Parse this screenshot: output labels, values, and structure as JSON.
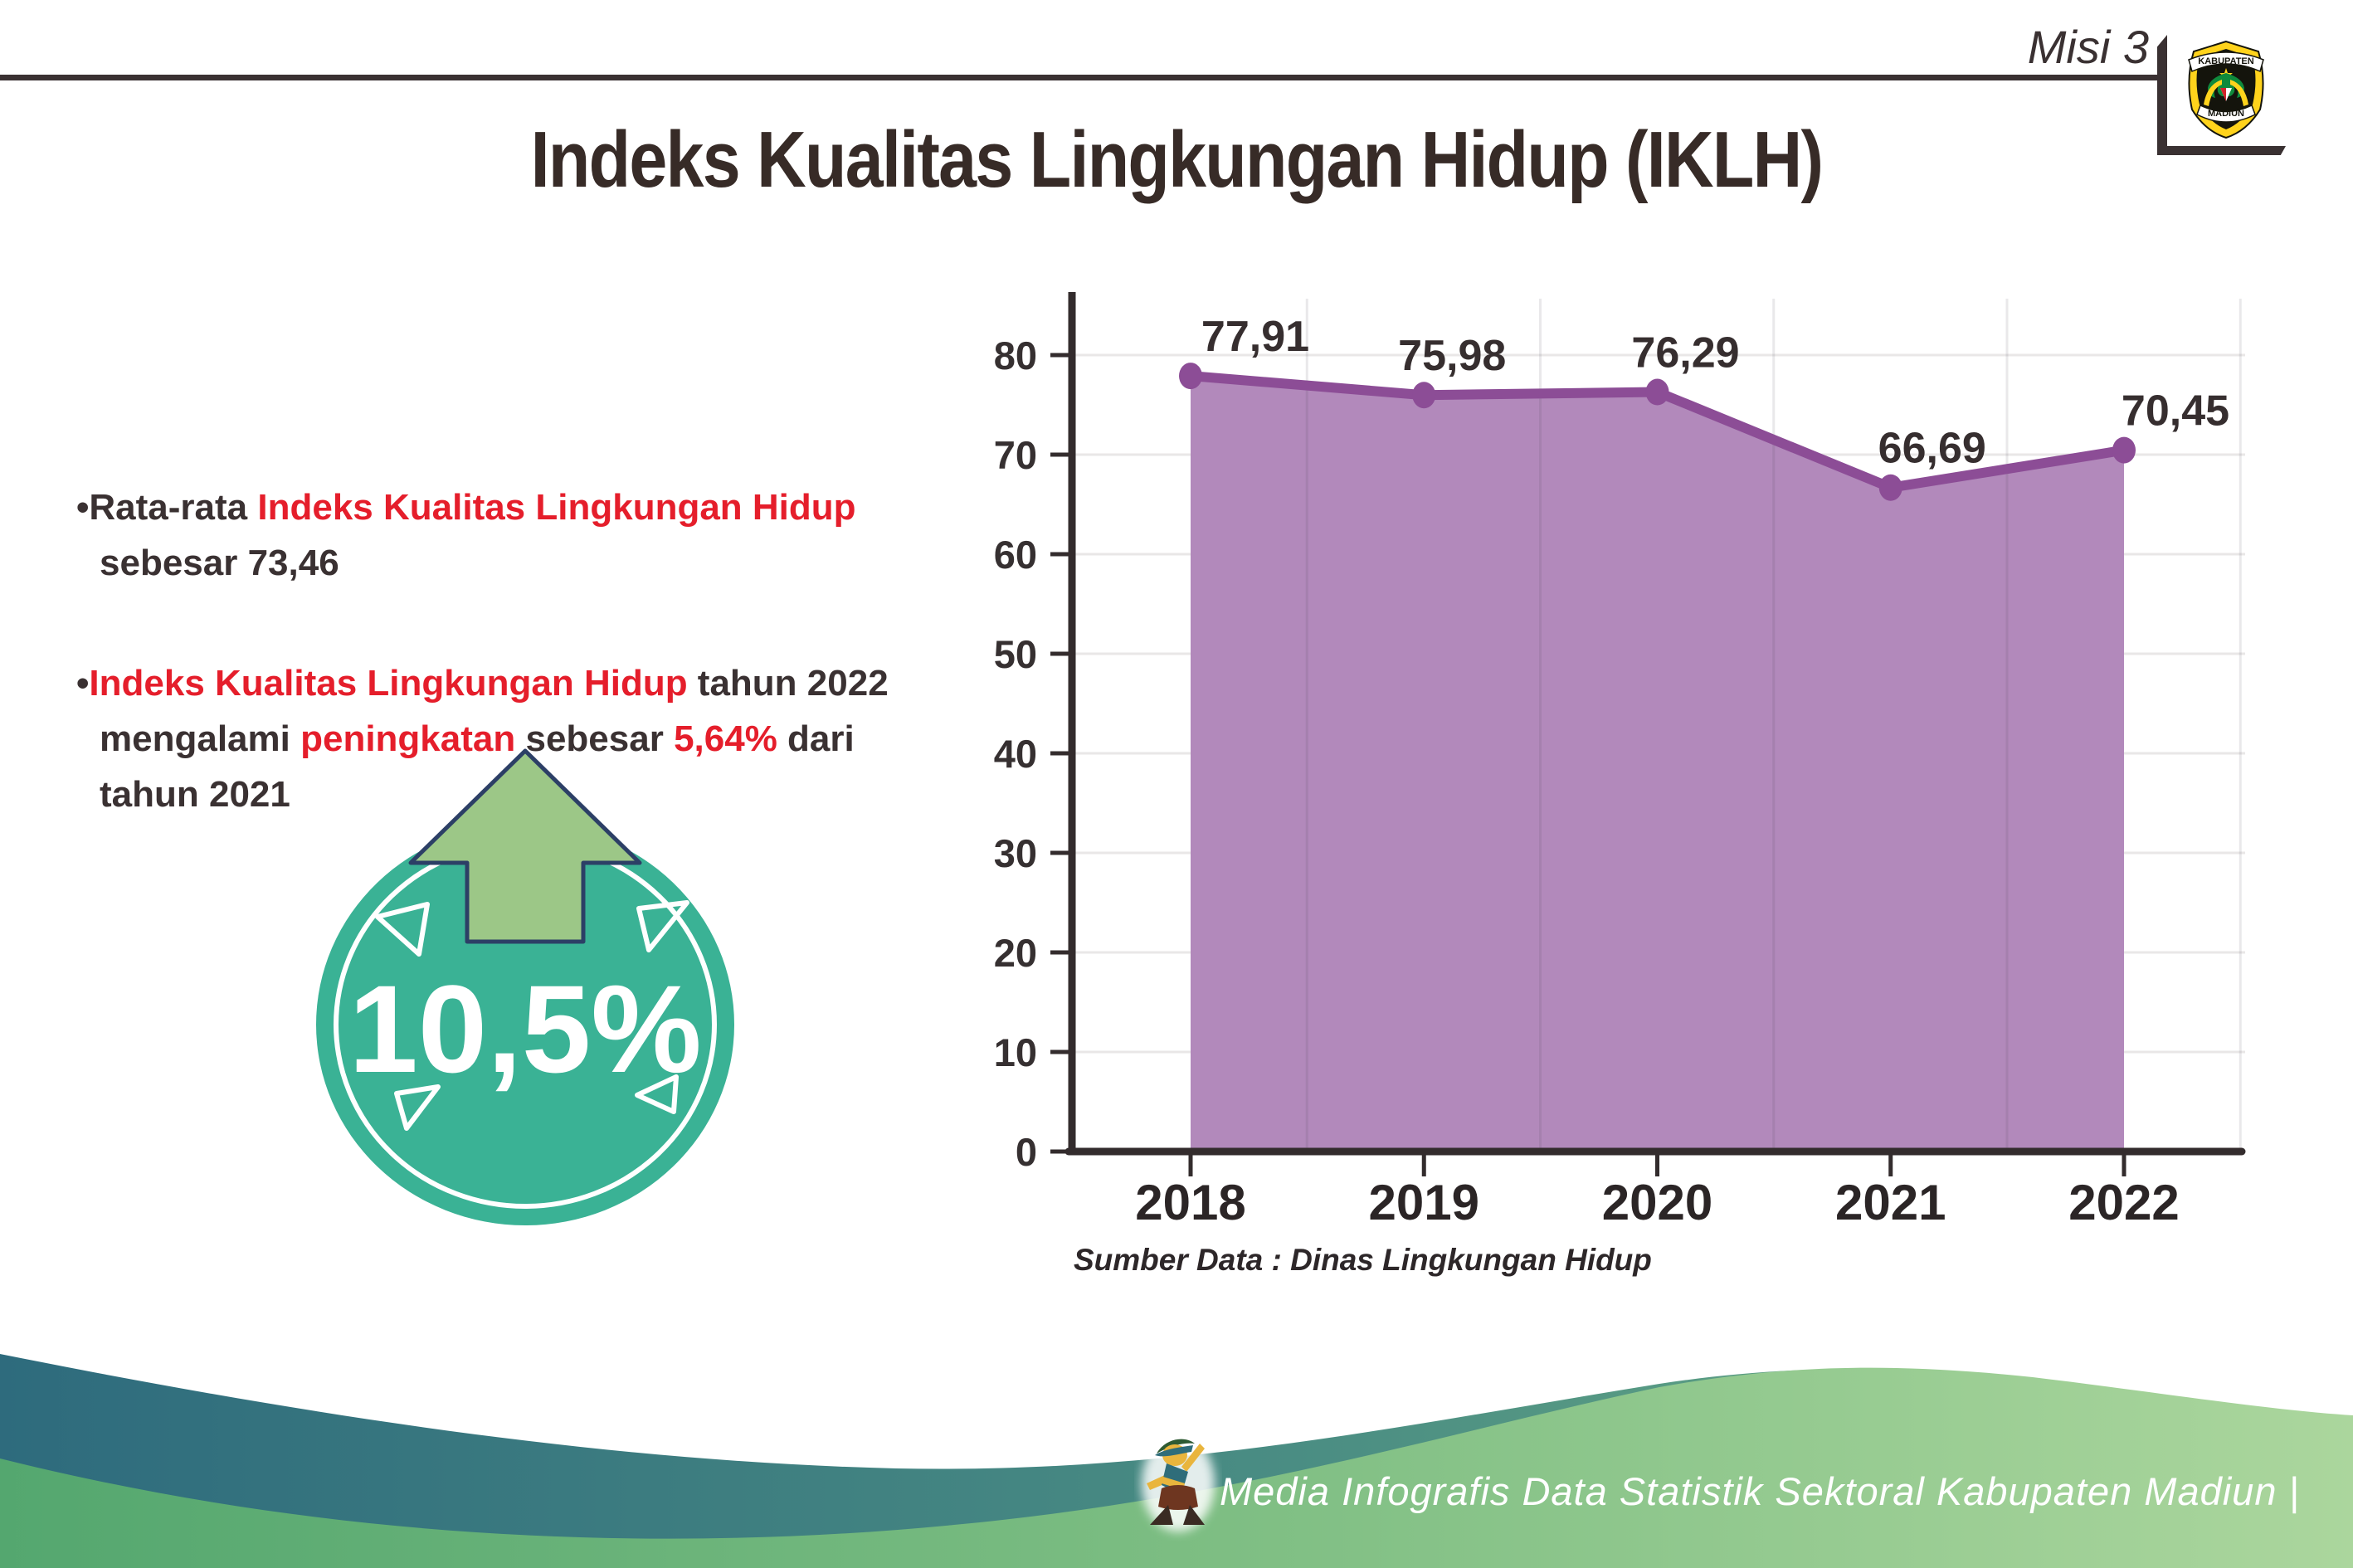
{
  "header": {
    "misi_label": "Misi 3",
    "logo": {
      "top_text": "KABUPATEN",
      "bottom_text": "MADIUN"
    }
  },
  "title": "Indeks Kualitas Lingkungan Hidup (IKLH)",
  "bullets": {
    "b1": [
      {
        "t": "•",
        "c": "dark"
      },
      {
        "t": "Rata-rata ",
        "c": "dark"
      },
      {
        "t": "Indeks Kualitas Lingkungan Hidup",
        "c": "red"
      },
      {
        "br": true
      },
      {
        "t": "sebesar 73,46",
        "c": "dark"
      }
    ],
    "b2": [
      {
        "t": "•",
        "c": "dark"
      },
      {
        "t": "Indeks Kualitas Lingkungan Hidup",
        "c": "red"
      },
      {
        "t": " tahun 2022",
        "c": "dark"
      },
      {
        "br": true
      },
      {
        "t": "mengalami ",
        "c": "dark"
      },
      {
        "t": "peningkatan",
        "c": "red"
      },
      {
        "t": " sebesar ",
        "c": "dark"
      },
      {
        "t": "5,64%",
        "c": "red"
      },
      {
        "t": " dari",
        "c": "dark"
      },
      {
        "br": true
      },
      {
        "t": "tahun 2021",
        "c": "dark"
      }
    ]
  },
  "badge": {
    "value": "10,5%",
    "circle_color": "#3ab295",
    "arrow_color": "#9cc787",
    "arrow_outline_color": "#2c3f66"
  },
  "chart_data": {
    "type": "area",
    "categories": [
      "2018",
      "2019",
      "2020",
      "2021",
      "2022"
    ],
    "values": [
      77.91,
      75.98,
      76.29,
      66.69,
      70.45
    ],
    "point_labels": [
      "77,91",
      "75,98",
      "76,29",
      "66,69",
      "70,45"
    ],
    "title": "",
    "xlabel": "",
    "ylabel": "",
    "ylim": [
      0,
      80
    ],
    "ytick_step": 10,
    "grid": true,
    "legend": "none",
    "fill_color": "#b289bb",
    "line_color": "#8c4d96",
    "point_color": "#8c4d96",
    "axis_color": "#332c2d",
    "data_label_color": "#362e2f",
    "source_caption": "Sumber Data : Dinas Lingkungan Hidup"
  },
  "footer": {
    "text": "Media Infografis Data Statistik Sektoral Kabupaten Madiun |",
    "mascot": "dancing-person-mascot"
  },
  "colors": {
    "ink": "#3a3132",
    "red": "#e51e2b",
    "teal_wave_start": "#2e6b7d",
    "teal_wave_end": "#6fb184",
    "green_wave_start": "#54a76f",
    "green_wave_end": "#abd69d"
  }
}
